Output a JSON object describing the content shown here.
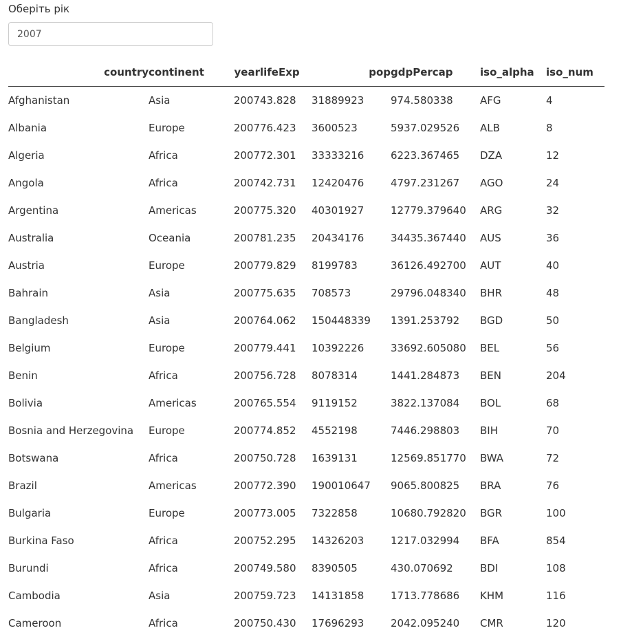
{
  "filter": {
    "label": "Оберіть рік",
    "value": "2007"
  },
  "table": {
    "columns": [
      "country",
      "continent",
      "year",
      "lifeExp",
      "pop",
      "gdpPercap",
      "iso_alpha",
      "iso_num"
    ],
    "rows": [
      [
        "Afghanistan",
        "Asia",
        "2007",
        "43.828",
        "31889923",
        "974.580338",
        "AFG",
        "4"
      ],
      [
        "Albania",
        "Europe",
        "2007",
        "76.423",
        "3600523",
        "5937.029526",
        "ALB",
        "8"
      ],
      [
        "Algeria",
        "Africa",
        "2007",
        "72.301",
        "33333216",
        "6223.367465",
        "DZA",
        "12"
      ],
      [
        "Angola",
        "Africa",
        "2007",
        "42.731",
        "12420476",
        "4797.231267",
        "AGO",
        "24"
      ],
      [
        "Argentina",
        "Americas",
        "2007",
        "75.320",
        "40301927",
        "12779.379640",
        "ARG",
        "32"
      ],
      [
        "Australia",
        "Oceania",
        "2007",
        "81.235",
        "20434176",
        "34435.367440",
        "AUS",
        "36"
      ],
      [
        "Austria",
        "Europe",
        "2007",
        "79.829",
        "8199783",
        "36126.492700",
        "AUT",
        "40"
      ],
      [
        "Bahrain",
        "Asia",
        "2007",
        "75.635",
        "708573",
        "29796.048340",
        "BHR",
        "48"
      ],
      [
        "Bangladesh",
        "Asia",
        "2007",
        "64.062",
        "150448339",
        "1391.253792",
        "BGD",
        "50"
      ],
      [
        "Belgium",
        "Europe",
        "2007",
        "79.441",
        "10392226",
        "33692.605080",
        "BEL",
        "56"
      ],
      [
        "Benin",
        "Africa",
        "2007",
        "56.728",
        "8078314",
        "1441.284873",
        "BEN",
        "204"
      ],
      [
        "Bolivia",
        "Americas",
        "2007",
        "65.554",
        "9119152",
        "3822.137084",
        "BOL",
        "68"
      ],
      [
        "Bosnia and Herzegovina",
        "Europe",
        "2007",
        "74.852",
        "4552198",
        "7446.298803",
        "BIH",
        "70"
      ],
      [
        "Botswana",
        "Africa",
        "2007",
        "50.728",
        "1639131",
        "12569.851770",
        "BWA",
        "72"
      ],
      [
        "Brazil",
        "Americas",
        "2007",
        "72.390",
        "190010647",
        "9065.800825",
        "BRA",
        "76"
      ],
      [
        "Bulgaria",
        "Europe",
        "2007",
        "73.005",
        "7322858",
        "10680.792820",
        "BGR",
        "100"
      ],
      [
        "Burkina Faso",
        "Africa",
        "2007",
        "52.295",
        "14326203",
        "1217.032994",
        "BFA",
        "854"
      ],
      [
        "Burundi",
        "Africa",
        "2007",
        "49.580",
        "8390505",
        "430.070692",
        "BDI",
        "108"
      ],
      [
        "Cambodia",
        "Asia",
        "2007",
        "59.723",
        "14131858",
        "1713.778686",
        "KHM",
        "116"
      ],
      [
        "Cameroon",
        "Africa",
        "2007",
        "50.430",
        "17696293",
        "2042.095240",
        "CMR",
        "120"
      ]
    ]
  }
}
